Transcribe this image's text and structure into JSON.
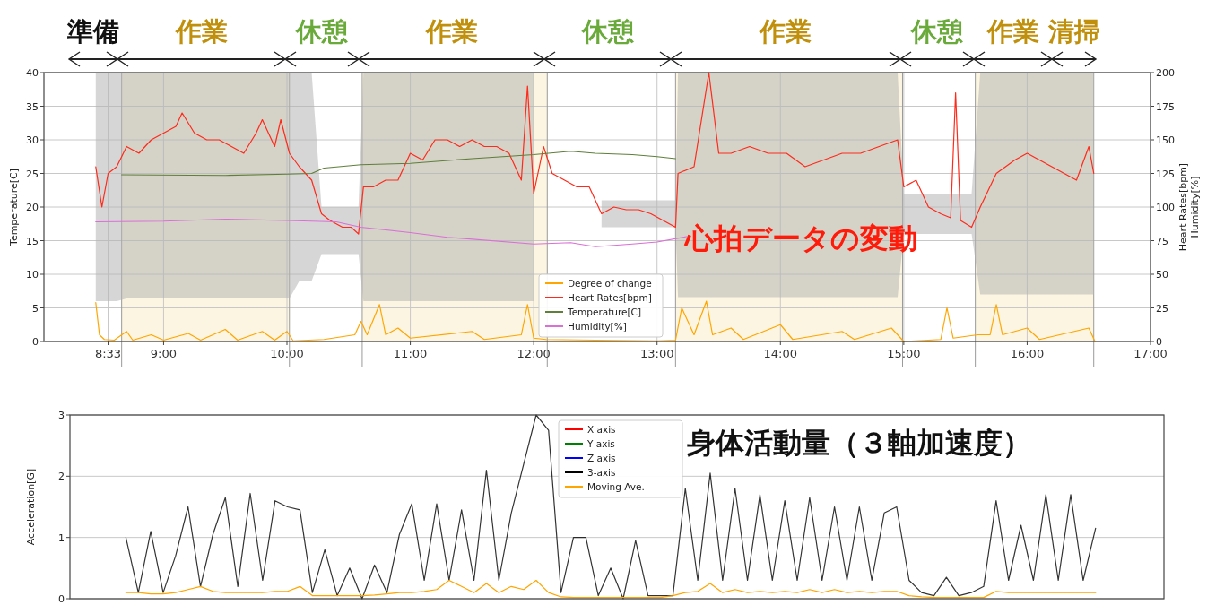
{
  "chart_data": [
    {
      "type": "line",
      "ylabel": "Temperature[C]",
      "y2label": "Heart Rates[bpm]\nHumidity[%]",
      "xlim": [
        8.03,
        17.0
      ],
      "ylim": [
        0,
        40
      ],
      "y2lim": [
        0,
        200
      ],
      "xticks": [
        {
          "value": 8.55,
          "label": "8:33"
        },
        {
          "value": 9,
          "label": "9:00"
        },
        {
          "value": 10,
          "label": "10:00"
        },
        {
          "value": 11,
          "label": "11:00"
        },
        {
          "value": 12,
          "label": "12:00"
        },
        {
          "value": 13,
          "label": "13:00"
        },
        {
          "value": 14,
          "label": "14:00"
        },
        {
          "value": 15,
          "label": "15:00"
        },
        {
          "value": 16,
          "label": "16:00"
        },
        {
          "value": 17,
          "label": "17:00"
        }
      ],
      "yticks": [
        0,
        5,
        10,
        15,
        20,
        25,
        30,
        35,
        40
      ],
      "y2ticks": [
        0,
        25,
        50,
        75,
        100,
        125,
        150,
        175,
        200
      ],
      "grid": true,
      "legend": "bottom",
      "marker": "none",
      "line_style": "solid",
      "bands": [
        {
          "axis": "x",
          "from": 8.66,
          "to": 10.02,
          "color": "#fcf5e1"
        },
        {
          "axis": "x",
          "from": 10.61,
          "to": 12.11,
          "color": "#fcf5e1"
        },
        {
          "axis": "x",
          "from": 13.15,
          "to": 14.99,
          "color": "#fcf5e1"
        },
        {
          "axis": "x",
          "from": 15.58,
          "to": 16.54,
          "color": "#fcf5e1"
        }
      ],
      "annotations": [
        "準備",
        "作業",
        "休憩",
        "作業",
        "休憩",
        "作業",
        "休憩",
        "作業",
        "清掃",
        "心拍データの変動"
      ],
      "series": [
        {
          "name": "Degree of change",
          "color": "#ffa500",
          "axis": "y",
          "x": [
            8.45,
            8.48,
            8.52,
            8.6,
            8.7,
            8.75,
            8.9,
            9,
            9.2,
            9.3,
            9.5,
            9.6,
            9.8,
            9.9,
            10,
            10.05,
            10.3,
            10.55,
            10.6,
            10.65,
            10.75,
            10.8,
            10.9,
            11,
            11.5,
            11.6,
            11.9,
            11.95,
            12,
            12.1,
            12.5,
            13,
            13.15,
            13.2,
            13.3,
            13.4,
            13.45,
            13.6,
            13.7,
            14,
            14.1,
            14.5,
            14.6,
            14.9,
            15,
            15.3,
            15.35,
            15.4,
            15.6,
            15.7,
            15.75,
            15.8,
            16,
            16.1,
            16.5,
            16.55
          ],
          "values": [
            5.8,
            1,
            0.3,
            0.2,
            1.5,
            0.2,
            1,
            0.2,
            1.2,
            0.2,
            1.8,
            0.2,
            1.5,
            0.2,
            1.5,
            0.1,
            0.3,
            1,
            3,
            1,
            5.5,
            1,
            2,
            0.5,
            1.5,
            0.3,
            1,
            5.5,
            0.5,
            0.3,
            0.2,
            0.1,
            0.2,
            5,
            1,
            6,
            1,
            2,
            0.3,
            2.5,
            0.3,
            1.5,
            0.3,
            2,
            0,
            0.3,
            5,
            0.5,
            1,
            1,
            5.5,
            1,
            2,
            0.3,
            2,
            0
          ]
        },
        {
          "name": "Heart Rates[bpm]",
          "color": "#ff2a1a",
          "axis": "y2",
          "x": [
            8.45,
            8.5,
            8.55,
            8.62,
            8.7,
            8.8,
            8.9,
            9,
            9.1,
            9.15,
            9.25,
            9.35,
            9.45,
            9.55,
            9.65,
            9.75,
            9.8,
            9.9,
            9.95,
            10.02,
            10.1,
            10.2,
            10.28,
            10.35,
            10.45,
            10.52,
            10.58,
            10.62,
            10.7,
            10.8,
            10.9,
            11,
            11.1,
            11.2,
            11.3,
            11.4,
            11.5,
            11.6,
            11.7,
            11.8,
            11.9,
            11.95,
            12,
            12.08,
            12.15,
            12.25,
            12.35,
            12.45,
            12.55,
            12.65,
            12.75,
            12.85,
            12.95,
            13.05,
            13.15,
            13.17,
            13.3,
            13.42,
            13.5,
            13.6,
            13.75,
            13.9,
            14.05,
            14.2,
            14.35,
            14.5,
            14.65,
            14.8,
            14.95,
            15,
            15.1,
            15.2,
            15.3,
            15.38,
            15.42,
            15.46,
            15.55,
            15.62,
            15.75,
            15.9,
            16,
            16.1,
            16.2,
            16.3,
            16.4,
            16.5,
            16.54
          ],
          "values": [
            130,
            100,
            125,
            130,
            145,
            140,
            150,
            155,
            160,
            170,
            155,
            150,
            150,
            145,
            140,
            155,
            165,
            145,
            165,
            140,
            130,
            120,
            95,
            90,
            85,
            85,
            80,
            115,
            115,
            120,
            120,
            140,
            135,
            150,
            150,
            145,
            150,
            145,
            145,
            140,
            120,
            190,
            110,
            145,
            125,
            120,
            115,
            115,
            95,
            100,
            98,
            98,
            95,
            90,
            85,
            125,
            130,
            200,
            140,
            140,
            145,
            140,
            140,
            130,
            135,
            140,
            140,
            145,
            150,
            115,
            120,
            100,
            95,
            92,
            185,
            90,
            85,
            100,
            125,
            135,
            140,
            135,
            130,
            125,
            120,
            145,
            125
          ],
          "lower": [
            30,
            30,
            30,
            30,
            32,
            32,
            32,
            32,
            32,
            32,
            32,
            32,
            32,
            32,
            32,
            32,
            32,
            32,
            32,
            32,
            45,
            45,
            65,
            65,
            65,
            65,
            65,
            30,
            30,
            30,
            30,
            30,
            30,
            30,
            30,
            30,
            30,
            30,
            30,
            30,
            30,
            30,
            30,
            null,
            null,
            null,
            null,
            null,
            85,
            85,
            85,
            85,
            85,
            85,
            85,
            33,
            33,
            33,
            33,
            33,
            33,
            33,
            33,
            33,
            33,
            33,
            33,
            33,
            33,
            80,
            80,
            80,
            80,
            80,
            80,
            80,
            80,
            35,
            35,
            35,
            35,
            35,
            35,
            35,
            35,
            35,
            35
          ],
          "upper": [
            200,
            200,
            200,
            200,
            200,
            200,
            200,
            200,
            200,
            200,
            200,
            200,
            200,
            200,
            200,
            200,
            200,
            200,
            200,
            200,
            200,
            200,
            100,
            100,
            100,
            100,
            100,
            200,
            200,
            200,
            200,
            200,
            200,
            200,
            200,
            200,
            200,
            200,
            200,
            200,
            200,
            200,
            200,
            null,
            null,
            null,
            null,
            null,
            105,
            105,
            105,
            105,
            105,
            105,
            105,
            200,
            200,
            200,
            200,
            200,
            200,
            200,
            200,
            200,
            200,
            200,
            200,
            200,
            200,
            110,
            110,
            110,
            110,
            110,
            110,
            110,
            110,
            200,
            200,
            200,
            200,
            200,
            200,
            200,
            200,
            200,
            200
          ]
        },
        {
          "name": "Temperature[C]",
          "color": "#5f7f3a",
          "axis": "y",
          "x": [
            8.66,
            9.5,
            10,
            10.2,
            10.3,
            10.6,
            11,
            11.5,
            12,
            12.3,
            12.5,
            12.8,
            13,
            13.15
          ],
          "values": [
            24.8,
            24.7,
            24.9,
            25,
            25.8,
            26.3,
            26.5,
            27.2,
            27.8,
            28.3,
            28,
            27.8,
            27.5,
            27.2
          ]
        },
        {
          "name": "Humidity[%]",
          "color": "#da70d6",
          "axis": "y2",
          "x": [
            8.45,
            9,
            9.5,
            10,
            10.4,
            10.6,
            11,
            11.3,
            12,
            12.3,
            12.5,
            12.8,
            13,
            13.24
          ],
          "values": [
            89,
            89.5,
            91,
            90,
            89,
            85,
            81,
            77.5,
            72.5,
            73.5,
            70.5,
            72.5,
            74,
            78
          ]
        }
      ]
    },
    {
      "type": "line",
      "ylabel": "Acceleration[G]",
      "ylim": [
        0,
        3
      ],
      "yticks": [
        0,
        1,
        2,
        3
      ],
      "grid": "y",
      "legend": "top",
      "marker": "none",
      "line_style": "solid",
      "categories": [
        null,
        null,
        null,
        null,
        null,
        null,
        null,
        null,
        null,
        null,
        null,
        null,
        null,
        null,
        null,
        null,
        null,
        null,
        null,
        null,
        null,
        null,
        null,
        null,
        null,
        null,
        null,
        null,
        null,
        null,
        null,
        null,
        null,
        null,
        null,
        null,
        null,
        null,
        null,
        null,
        null,
        null,
        null,
        null,
        null,
        null,
        null,
        null,
        null,
        null,
        null,
        null,
        null,
        null,
        null,
        null,
        null,
        null,
        null,
        null,
        null,
        null,
        null,
        null,
        null,
        null,
        null,
        null,
        null,
        null,
        null,
        null,
        null,
        null,
        null,
        null,
        null,
        null,
        null,
        null,
        null,
        null,
        null,
        null,
        null,
        null,
        null,
        null
      ],
      "annotations": [
        "身体活動量（３軸加速度）"
      ],
      "series": [
        {
          "name": "X axis",
          "color": "#ff0000",
          "values": [
            null,
            null,
            null,
            null,
            null,
            null,
            null,
            null,
            null,
            null,
            null,
            null,
            null,
            null,
            null,
            null,
            null,
            null,
            null,
            null,
            null,
            null,
            null,
            null,
            null,
            null,
            null,
            null,
            null,
            null,
            null,
            null,
            null,
            null,
            null,
            null,
            null,
            null,
            null,
            null,
            null,
            null,
            null,
            null,
            null,
            null,
            null,
            null,
            null,
            null,
            null,
            null,
            null,
            null,
            null,
            null,
            null,
            null,
            null,
            null,
            null,
            null,
            null,
            null,
            null,
            null,
            null,
            null,
            null,
            null,
            null,
            null,
            null,
            null,
            null,
            null,
            null,
            null,
            null,
            null,
            null,
            null,
            null,
            null,
            null,
            null,
            null,
            null
          ]
        },
        {
          "name": "Y axis",
          "color": "#008000",
          "values": [
            null,
            null,
            null,
            null,
            null,
            null,
            null,
            null,
            null,
            null,
            null,
            null,
            null,
            null,
            null,
            null,
            null,
            null,
            null,
            null,
            null,
            null,
            null,
            null,
            null,
            null,
            null,
            null,
            null,
            null,
            null,
            null,
            null,
            null,
            null,
            null,
            null,
            null,
            null,
            null,
            null,
            null,
            null,
            null,
            null,
            null,
            null,
            null,
            null,
            null,
            null,
            null,
            null,
            null,
            null,
            null,
            null,
            null,
            null,
            null,
            null,
            null,
            null,
            null,
            null,
            null,
            null,
            null,
            null,
            null,
            null,
            null,
            null,
            null,
            null,
            null,
            null,
            null,
            null,
            null,
            null,
            null,
            null,
            null,
            null,
            null,
            null,
            null
          ]
        },
        {
          "name": "Z axis",
          "color": "#0000ff",
          "values": [
            null,
            null,
            null,
            null,
            null,
            null,
            null,
            null,
            null,
            null,
            null,
            null,
            null,
            null,
            null,
            null,
            null,
            null,
            null,
            null,
            null,
            null,
            null,
            null,
            null,
            null,
            null,
            null,
            null,
            null,
            null,
            null,
            null,
            null,
            null,
            null,
            null,
            null,
            null,
            null,
            null,
            null,
            null,
            null,
            null,
            null,
            null,
            null,
            null,
            null,
            null,
            null,
            null,
            null,
            null,
            null,
            null,
            null,
            null,
            null,
            null,
            null,
            null,
            null,
            null,
            null,
            null,
            null,
            null,
            null,
            null,
            null,
            null,
            null,
            null,
            null,
            null,
            null,
            null,
            null,
            null,
            null,
            null,
            null,
            null,
            null,
            null,
            null
          ]
        },
        {
          "name": "3-axis",
          "color": "#000000",
          "values": [
            null,
            null,
            null,
            null,
            1,
            0.1,
            1.1,
            0.1,
            0.7,
            1.5,
            0.2,
            1.05,
            1.65,
            0.2,
            1.72,
            0.3,
            1.6,
            1.5,
            1.45,
            0.1,
            0.8,
            0.05,
            0.5,
            0,
            0.55,
            0.1,
            1.05,
            1.55,
            0.3,
            1.55,
            0.3,
            1.45,
            0.3,
            2.1,
            0.3,
            1.4,
            2.2,
            3,
            2.75,
            0.1,
            1,
            1,
            0.05,
            0.5,
            0,
            0.95,
            0.05,
            0.05,
            0.05,
            1.8,
            0.3,
            2.05,
            0.3,
            1.8,
            0.3,
            1.7,
            0.3,
            1.6,
            0.3,
            1.65,
            0.3,
            1.5,
            0.3,
            1.5,
            0.3,
            1.4,
            1.5,
            0.3,
            0.1,
            0.05,
            0.35,
            0.05,
            0.1,
            0.2,
            1.6,
            0.3,
            1.2,
            0.3,
            1.7,
            0.3,
            1.7,
            0.3,
            1.15,
            null,
            null,
            null,
            null,
            null
          ]
        },
        {
          "name": "Moving Ave.",
          "color": "#ffa500",
          "values": [
            null,
            null,
            null,
            null,
            0.1,
            0.1,
            0.08,
            0.08,
            0.1,
            0.15,
            0.2,
            0.12,
            0.1,
            0.1,
            0.1,
            0.1,
            0.12,
            0.12,
            0.2,
            0.05,
            0.05,
            0.05,
            0.05,
            0.05,
            0.06,
            0.08,
            0.1,
            0.1,
            0.12,
            0.15,
            0.3,
            0.2,
            0.1,
            0.25,
            0.1,
            0.2,
            0.15,
            0.3,
            0.1,
            0.03,
            0.02,
            0.02,
            0.02,
            0.02,
            0.02,
            0.02,
            0.02,
            0.02,
            0.05,
            0.1,
            0.12,
            0.25,
            0.1,
            0.15,
            0.1,
            0.12,
            0.1,
            0.12,
            0.1,
            0.15,
            0.1,
            0.15,
            0.1,
            0.12,
            0.1,
            0.12,
            0.12,
            0.05,
            0.03,
            0.02,
            0.02,
            0.02,
            0.02,
            0.02,
            0.12,
            0.1,
            0.1,
            0.1,
            0.1,
            0.1,
            0.1,
            0.1,
            0.1,
            null,
            null,
            null,
            null,
            null
          ]
        }
      ]
    }
  ]
}
